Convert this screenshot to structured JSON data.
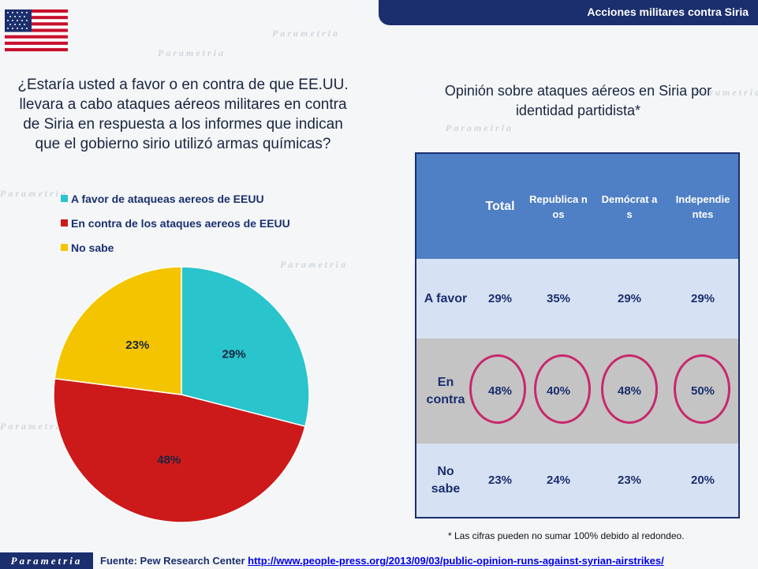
{
  "header": {
    "title": "Acciones militares contra Siria"
  },
  "question": "¿Estaría usted a favor o en contra de que EE.UU. llevara a cabo ataques  aéreos militares en contra de Siria en respuesta a los informes que indican que el gobierno sirio utilizó armas químicas?",
  "legend": [
    {
      "label": "A favor de ataqueas aereos de EEUU",
      "color": "#2ac4cc"
    },
    {
      "label": "En contra de los ataques aereos de EEUU",
      "color": "#cc1a1a"
    },
    {
      "label": "No sabe",
      "color": "#f5c400"
    }
  ],
  "table": {
    "title": "Opinión sobre ataques aéreos en Siria por identidad partidista*",
    "columns": [
      "Total",
      "Republica nos",
      "Demócrat as",
      "Independie ntes"
    ],
    "rows": [
      {
        "label": "A favor",
        "values": [
          "29%",
          "35%",
          "29%",
          "29%"
        ]
      },
      {
        "label": "En contra",
        "values": [
          "48%",
          "40%",
          "48%",
          "50%"
        ]
      },
      {
        "label": "No sabe",
        "values": [
          "23%",
          "24%",
          "23%",
          "20%"
        ]
      }
    ]
  },
  "footnote": "* Las cifras pueden no sumar 100% debido al redondeo.",
  "footer": {
    "brand": "Parametria",
    "source_prefix": "Fuente: Pew Research Center",
    "source_link": "http://www.people-press.org/2013/09/03/public-opinion-runs-against-syrian-airstrikes/"
  },
  "watermark": "Parametria",
  "chart_data": {
    "type": "pie",
    "categories": [
      "A favor de ataqueas aereos de EEUU",
      "En contra de los ataques aereos de EEUU",
      "No sabe"
    ],
    "values": [
      29,
      48,
      23
    ],
    "labels": [
      "29%",
      "48%",
      "23%"
    ],
    "colors": [
      "#2ac4cc",
      "#cc1a1a",
      "#f5c400"
    ],
    "legend_position": "top-left"
  }
}
